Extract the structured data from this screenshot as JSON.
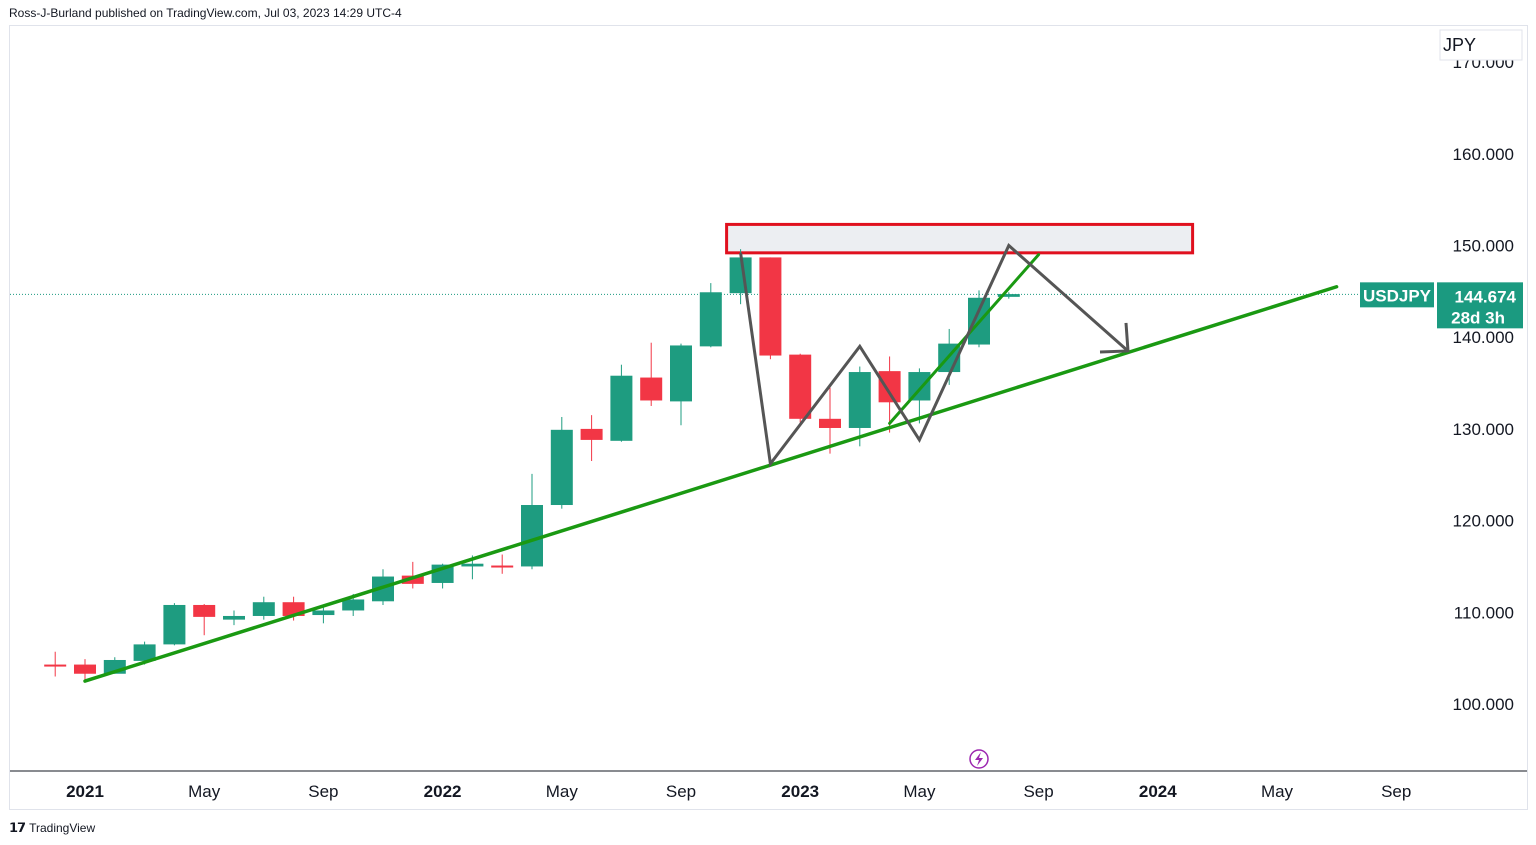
{
  "header": {
    "publisher_line": "Ross-J-Burland published on TradingView.com, Jul 03, 2023 14:29 UTC-4"
  },
  "footer": {
    "brand": "TradingView"
  },
  "colors": {
    "up": "#26a69a",
    "up_body": "#1e9c80",
    "down": "#f23645",
    "trend": "#1a9912",
    "pattern": "#555555",
    "zone_border": "#e0101e",
    "zone_fill": "#eceef2",
    "price_label": "#1b9a80",
    "lightning": "#9c27b0"
  },
  "chart_data": {
    "type": "candlestick",
    "symbol": "USDJPY",
    "interval": "monthly",
    "currency_label": "JPY",
    "last_price": 144.674,
    "last_price_text": "144.674",
    "countdown": "28d 3h",
    "y_ticks": [
      100,
      110,
      120,
      130,
      140,
      150,
      160,
      170
    ],
    "y_tick_labels": [
      "100.000",
      "110.000",
      "120.000",
      "130.000",
      "140.000",
      "150.000",
      "160.000",
      "170.000"
    ],
    "x_tick_labels": [
      {
        "label": "2021",
        "date": "2021-01",
        "bold": true
      },
      {
        "label": "May",
        "date": "2021-05",
        "bold": false
      },
      {
        "label": "Sep",
        "date": "2021-09",
        "bold": false
      },
      {
        "label": "2022",
        "date": "2022-01",
        "bold": true
      },
      {
        "label": "May",
        "date": "2022-05",
        "bold": false
      },
      {
        "label": "Sep",
        "date": "2022-09",
        "bold": false
      },
      {
        "label": "2023",
        "date": "2023-01",
        "bold": true
      },
      {
        "label": "May",
        "date": "2023-05",
        "bold": false
      },
      {
        "label": "Sep",
        "date": "2023-09",
        "bold": false
      },
      {
        "label": "2024",
        "date": "2024-01",
        "bold": true
      },
      {
        "label": "May",
        "date": "2024-05",
        "bold": false
      },
      {
        "label": "Sep",
        "date": "2024-09",
        "bold": false
      }
    ],
    "candles": [
      {
        "date": "2020-12",
        "o": 104.3,
        "h": 105.7,
        "l": 103.0,
        "c": 104.2
      },
      {
        "date": "2021-01",
        "o": 104.3,
        "h": 104.9,
        "l": 102.6,
        "c": 103.3
      },
      {
        "date": "2021-02",
        "o": 103.3,
        "h": 105.1,
        "l": 103.3,
        "c": 104.8
      },
      {
        "date": "2021-03",
        "o": 104.7,
        "h": 106.8,
        "l": 104.3,
        "c": 106.5
      },
      {
        "date": "2021-04",
        "o": 106.5,
        "h": 111.0,
        "l": 106.4,
        "c": 110.8
      },
      {
        "date": "2021-05",
        "o": 110.8,
        "h": 110.9,
        "l": 107.5,
        "c": 109.5
      },
      {
        "date": "2021-06",
        "o": 109.2,
        "h": 110.2,
        "l": 108.6,
        "c": 109.6
      },
      {
        "date": "2021-07",
        "o": 109.6,
        "h": 111.7,
        "l": 109.2,
        "c": 111.1
      },
      {
        "date": "2021-08",
        "o": 111.1,
        "h": 111.7,
        "l": 109.1,
        "c": 109.6
      },
      {
        "date": "2021-09",
        "o": 109.7,
        "h": 110.8,
        "l": 108.8,
        "c": 110.2
      },
      {
        "date": "2021-10",
        "o": 110.2,
        "h": 112.0,
        "l": 109.6,
        "c": 111.4
      },
      {
        "date": "2021-11",
        "o": 111.2,
        "h": 114.7,
        "l": 110.8,
        "c": 113.9
      },
      {
        "date": "2021-12",
        "o": 114.0,
        "h": 115.5,
        "l": 112.6,
        "c": 113.1
      },
      {
        "date": "2022-01",
        "o": 113.2,
        "h": 115.3,
        "l": 112.6,
        "c": 115.2
      },
      {
        "date": "2022-02",
        "o": 115.0,
        "h": 116.2,
        "l": 113.6,
        "c": 115.3
      },
      {
        "date": "2022-03",
        "o": 115.1,
        "h": 116.3,
        "l": 114.2,
        "c": 114.9
      },
      {
        "date": "2022-04",
        "o": 115.0,
        "h": 125.1,
        "l": 114.7,
        "c": 121.7
      },
      {
        "date": "2022-05",
        "o": 121.7,
        "h": 131.3,
        "l": 121.3,
        "c": 129.9
      },
      {
        "date": "2022-06",
        "o": 130.0,
        "h": 131.5,
        "l": 126.5,
        "c": 128.8
      },
      {
        "date": "2022-07",
        "o": 128.7,
        "h": 137.0,
        "l": 128.6,
        "c": 135.8
      },
      {
        "date": "2022-08",
        "o": 135.6,
        "h": 139.4,
        "l": 132.5,
        "c": 133.1
      },
      {
        "date": "2022-09",
        "o": 133.0,
        "h": 139.3,
        "l": 130.4,
        "c": 139.1
      },
      {
        "date": "2022-10",
        "o": 139.0,
        "h": 145.9,
        "l": 138.9,
        "c": 144.9
      },
      {
        "date": "2022-11",
        "o": 144.8,
        "h": 149.6,
        "l": 143.6,
        "c": 148.7
      },
      {
        "date": "2022-12",
        "o": 148.7,
        "h": 148.7,
        "l": 137.6,
        "c": 138.0
      },
      {
        "date": "2023-01",
        "o": 138.1,
        "h": 138.2,
        "l": 130.7,
        "c": 131.1
      },
      {
        "date": "2023-02",
        "o": 131.1,
        "h": 134.5,
        "l": 127.3,
        "c": 130.1
      },
      {
        "date": "2023-03",
        "o": 130.1,
        "h": 136.8,
        "l": 128.1,
        "c": 136.2
      },
      {
        "date": "2023-04",
        "o": 136.3,
        "h": 137.9,
        "l": 129.6,
        "c": 132.9
      },
      {
        "date": "2023-05",
        "o": 133.1,
        "h": 136.6,
        "l": 130.6,
        "c": 136.2
      },
      {
        "date": "2023-06",
        "o": 136.2,
        "h": 140.9,
        "l": 134.8,
        "c": 139.3
      },
      {
        "date": "2023-07",
        "o": 139.2,
        "h": 145.1,
        "l": 138.9,
        "c": 144.3
      },
      {
        "date": "2023-08",
        "o": 144.4,
        "h": 144.9,
        "l": 144.2,
        "c": 144.7
      }
    ],
    "drawings": {
      "supply_zone": {
        "date_from": "2022-11",
        "date_to": "2024-02",
        "price_low": 149.2,
        "price_high": 152.3
      },
      "main_trendline": {
        "from": {
          "date": "2021-01",
          "price": 102.5
        },
        "to": {
          "date": "2024-07",
          "price": 145.5
        }
      },
      "steep_trendline": {
        "from": {
          "date": "2023-04",
          "price": 130.6
        },
        "to": {
          "date": "2023-09",
          "price": 149.0
        }
      },
      "pattern_path": [
        {
          "date": "2022-11",
          "price": 149.2
        },
        {
          "date": "2022-12",
          "price": 126.2
        },
        {
          "date": "2023-03",
          "price": 139.0
        },
        {
          "date": "2023-05",
          "price": 128.8
        },
        {
          "date": "2023-08",
          "price": 150.0
        },
        {
          "date": "2023-12",
          "price": 138.5
        }
      ]
    }
  }
}
